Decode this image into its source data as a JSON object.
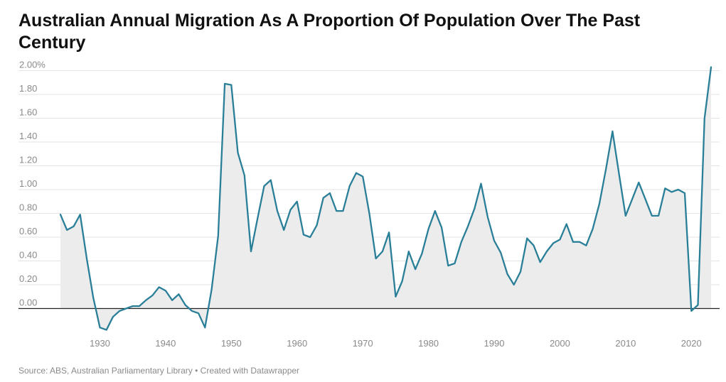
{
  "title": "Australian Annual Migration As A Proportion Of Population Over The Past Century",
  "source": "Source: ABS, Australian Parliamentary Library • Created with Datawrapper",
  "colors": {
    "line": "#2a7f98",
    "area": "#ececec",
    "grid": "#e3e3e3",
    "baseline": "#222222",
    "tick": "#8a8a8a"
  },
  "chart_data": {
    "type": "area",
    "grid": true,
    "ylim": [
      -0.2,
      2.0
    ],
    "y_ticks": [
      0.0,
      0.2,
      0.4,
      0.6,
      0.8,
      1.0,
      1.2,
      1.4,
      1.6,
      1.8,
      2.0
    ],
    "y_tick_labels": [
      "0.00",
      "0.20",
      "0.40",
      "0.60",
      "0.80",
      "1.00",
      "1.20",
      "1.40",
      "1.60",
      "1.80",
      "2.00%"
    ],
    "xlim": [
      1924,
      2023
    ],
    "x_ticks": [
      1930,
      1940,
      1950,
      1960,
      1970,
      1980,
      1990,
      2000,
      2010,
      2020
    ],
    "x_tick_labels": [
      "1930",
      "1940",
      "1950",
      "1960",
      "1970",
      "1980",
      "1990",
      "2000",
      "2010",
      "2020"
    ],
    "series": [
      {
        "x": [
          1924,
          1925,
          1926,
          1927,
          1928,
          1929,
          1930,
          1931,
          1932,
          1933,
          1934,
          1935,
          1936,
          1937,
          1938,
          1939,
          1940,
          1941,
          1942,
          1943,
          1944,
          1945,
          1946,
          1947,
          1948,
          1949,
          1950,
          1951,
          1952,
          1953,
          1954,
          1955,
          1956,
          1957,
          1958,
          1959,
          1960,
          1961,
          1962,
          1963,
          1964,
          1965,
          1966,
          1967,
          1968,
          1969,
          1970,
          1971,
          1972,
          1973,
          1974,
          1975,
          1976,
          1977,
          1978,
          1979,
          1980,
          1981,
          1982,
          1983,
          1984,
          1985,
          1986,
          1987,
          1988,
          1989,
          1990,
          1991,
          1992,
          1993,
          1994,
          1995,
          1996,
          1997,
          1998,
          1999,
          2000,
          2001,
          2002,
          2003,
          2004,
          2005,
          2006,
          2007,
          2008,
          2009,
          2010,
          2011,
          2012,
          2013,
          2014,
          2015,
          2016,
          2017,
          2018,
          2019,
          2020,
          2021,
          2022,
          2023
        ],
        "values": [
          0.79,
          0.66,
          0.69,
          0.79,
          0.42,
          0.09,
          -0.16,
          -0.18,
          -0.07,
          -0.02,
          0.0,
          0.02,
          0.02,
          0.07,
          0.11,
          0.18,
          0.15,
          0.07,
          0.12,
          0.03,
          -0.02,
          -0.04,
          -0.16,
          0.16,
          0.61,
          1.89,
          1.88,
          1.31,
          1.12,
          0.48,
          0.76,
          1.03,
          1.08,
          0.82,
          0.66,
          0.83,
          0.9,
          0.62,
          0.6,
          0.7,
          0.93,
          0.97,
          0.82,
          0.82,
          1.03,
          1.14,
          1.11,
          0.8,
          0.42,
          0.48,
          0.64,
          0.1,
          0.23,
          0.48,
          0.33,
          0.46,
          0.67,
          0.82,
          0.68,
          0.36,
          0.38,
          0.56,
          0.69,
          0.84,
          1.05,
          0.77,
          0.57,
          0.47,
          0.29,
          0.2,
          0.31,
          0.59,
          0.53,
          0.39,
          0.48,
          0.55,
          0.58,
          0.71,
          0.56,
          0.56,
          0.53,
          0.67,
          0.88,
          1.17,
          1.49,
          1.13,
          0.78,
          0.92,
          1.06,
          0.92,
          0.78,
          0.78,
          1.01,
          0.98,
          1.0,
          0.97,
          -0.02,
          0.03,
          1.6,
          2.03
        ]
      }
    ]
  }
}
